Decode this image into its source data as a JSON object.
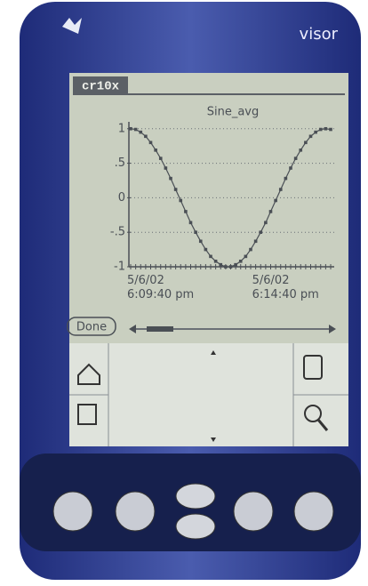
{
  "brand": "visor",
  "app_title": "cr10x",
  "done_button": "Done",
  "chart_data": {
    "type": "line",
    "title": "Sine_avg",
    "categories": [
      "5/6/02\n6:09:40 pm",
      null,
      null,
      null,
      null,
      null,
      null,
      null,
      null,
      null,
      null,
      null,
      null,
      null,
      null,
      null,
      null,
      null,
      null,
      null,
      null,
      null,
      null,
      null,
      null,
      "5/6/02\n6:14:40 pm",
      null,
      null,
      null,
      null,
      null,
      null,
      null,
      null,
      null,
      null,
      null,
      null,
      null,
      null,
      null
    ],
    "series": [
      {
        "color": "#4a4f55",
        "values": [
          1,
          0.99,
          0.95,
          0.89,
          0.8,
          0.69,
          0.57,
          0.43,
          0.28,
          0.12,
          -0.04,
          -0.2,
          -0.36,
          -0.5,
          -0.63,
          -0.75,
          -0.85,
          -0.92,
          -0.97,
          -1,
          -1,
          -0.97,
          -0.92,
          -0.85,
          -0.75,
          -0.63,
          -0.5,
          -0.36,
          -0.2,
          -0.04,
          0.12,
          0.28,
          0.43,
          0.57,
          0.69,
          0.8,
          0.89,
          0.95,
          0.99,
          1,
          0.99
        ]
      }
    ],
    "ylim": [
      -1,
      1.1
    ],
    "yticks": [
      -1,
      {
        "value": -0.5,
        "label": "-.5"
      },
      0,
      {
        "value": 0.5,
        "label": ".5"
      },
      1
    ],
    "grid": true
  }
}
